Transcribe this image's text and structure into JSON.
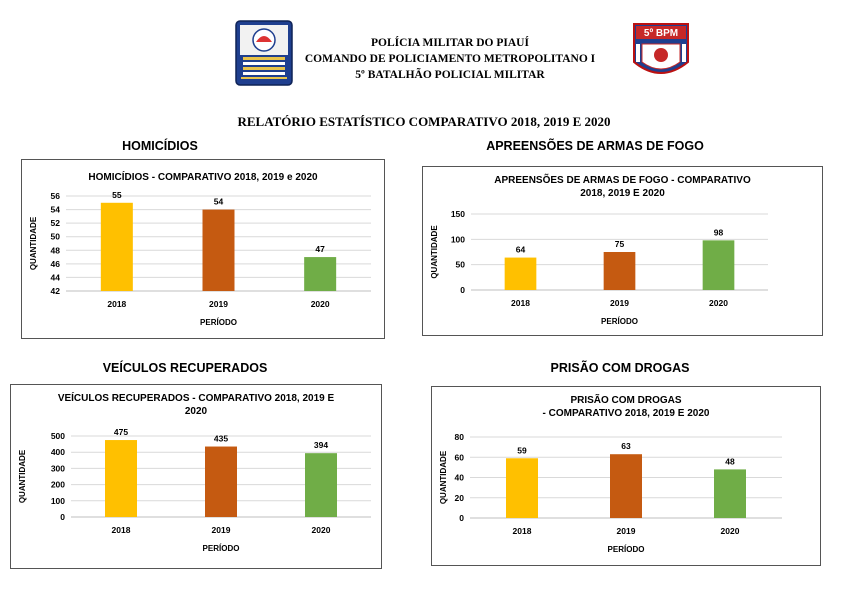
{
  "header": {
    "line1": "POLÍCIA MILITAR DO PIAUÍ",
    "line2": "COMANDO DE POLICIAMENTO METROPOLITANO I",
    "line3": "5º BATALHÃO POLICIAL MILITAR",
    "badge_text": "5º BPM"
  },
  "report_title": "RELATÓRIO ESTATÍSTICO COMPARATIVO 2018, 2019 E 2020",
  "sections": {
    "homicidios": "HOMICÍDIOS",
    "apreensoes": "APREENSÕES DE ARMAS DE FOGO",
    "veiculos": "VEÍCULOS RECUPERADOS",
    "prisao": "PRISÃO COM DROGAS"
  },
  "colors": {
    "y2018": "#FFC000",
    "y2019": "#C55A11",
    "y2020": "#70AD47",
    "grid": "#d9d9d9",
    "axis": "#bfbfbf"
  },
  "chart_data": [
    {
      "type": "bar",
      "title_lines": [
        "HOMICÍDIOS - COMPARATIVO 2018, 2019 e 2020"
      ],
      "categories": [
        "2018",
        "2019",
        "2020"
      ],
      "values": [
        55,
        54,
        47
      ],
      "xlabel": "PERÍODO",
      "ylabel": "QUANTIDADE",
      "ylim": [
        42,
        56
      ],
      "yticks": [
        42,
        44,
        46,
        48,
        50,
        52,
        54,
        56
      ],
      "grid": true
    },
    {
      "type": "bar",
      "title_lines": [
        "APREENSÕES DE ARMAS DE FOGO - COMPARATIVO",
        "2018, 2019 E 2020"
      ],
      "categories": [
        "2018",
        "2019",
        "2020"
      ],
      "values": [
        64,
        75,
        98
      ],
      "xlabel": "PERÍODO",
      "ylabel": "QUANTIDADE",
      "ylim": [
        0,
        150
      ],
      "yticks": [
        0,
        50,
        100,
        150
      ],
      "grid": true
    },
    {
      "type": "bar",
      "title_lines": [
        "VEÍCULOS RECUPERADOS - COMPARATIVO 2018, 2019 E",
        "2020"
      ],
      "categories": [
        "2018",
        "2019",
        "2020"
      ],
      "values": [
        475,
        435,
        394
      ],
      "xlabel": "PERÍODO",
      "ylabel": "QUANTIDADE",
      "ylim": [
        0,
        500
      ],
      "yticks": [
        0,
        100,
        200,
        300,
        400,
        500
      ],
      "grid": true
    },
    {
      "type": "bar",
      "title_lines": [
        "PRISÃO COM DROGAS",
        "- COMPARATIVO 2018, 2019 E 2020"
      ],
      "categories": [
        "2018",
        "2019",
        "2020"
      ],
      "values": [
        59,
        63,
        48
      ],
      "xlabel": "PERÍODO",
      "ylabel": "QUANTIDADE",
      "ylim": [
        0,
        80
      ],
      "yticks": [
        0,
        20,
        40,
        60,
        80
      ],
      "grid": true
    }
  ]
}
